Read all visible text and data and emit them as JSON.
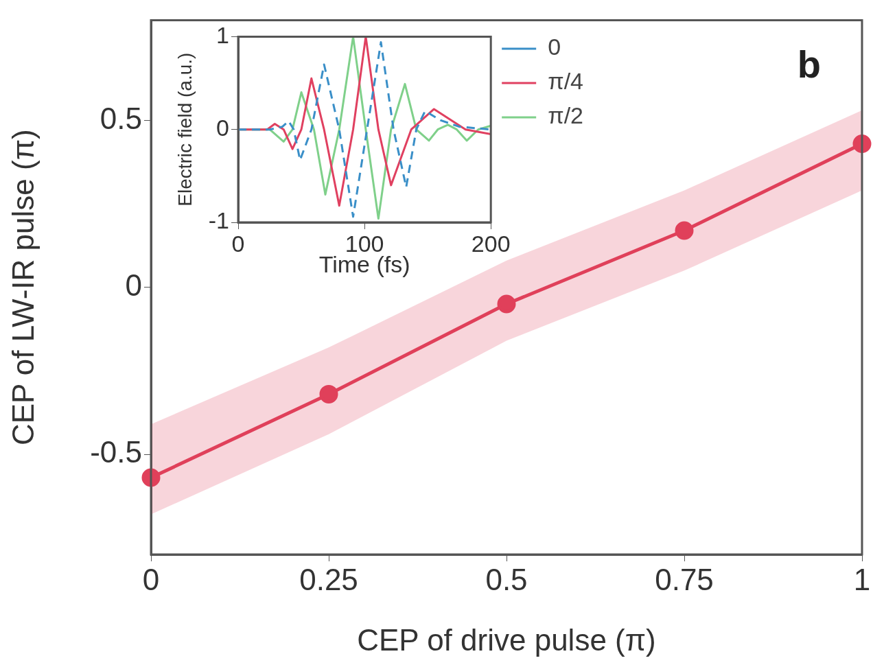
{
  "chart_data": [
    {
      "type": "line",
      "xlabel": "CEP of drive pulse (π)",
      "ylabel": "CEP of LW-IR pulse (π)",
      "x": [
        0,
        0.25,
        0.5,
        0.75,
        1
      ],
      "series": [
        {
          "color": "#e0405a",
          "values": [
            -0.57,
            -0.32,
            -0.05,
            0.17,
            0.43
          ],
          "lower": [
            -0.68,
            -0.44,
            -0.16,
            0.05,
            0.29
          ],
          "upper": [
            -0.41,
            -0.18,
            0.08,
            0.29,
            0.53
          ]
        }
      ],
      "xlim": [
        0,
        1
      ],
      "ylim": [
        -0.8,
        0.8
      ],
      "xticks": [
        0,
        0.25,
        0.5,
        0.75,
        1
      ],
      "yticks": [
        -0.5,
        0,
        0.5
      ],
      "marker": "circle",
      "grid": false,
      "annotations": [
        "b"
      ]
    },
    {
      "type": "line",
      "xlabel": "Time (fs)",
      "ylabel": "Electric field (a.u.)",
      "legend": "right",
      "marker": "none",
      "grid": false,
      "xlim": [
        0,
        200
      ],
      "ylim": [
        -1,
        1
      ],
      "xticks": [
        0,
        100,
        200
      ],
      "yticks": [
        -1,
        0,
        1
      ],
      "series": [
        {
          "name": "0",
          "color": "#3a8fc8",
          "line_style": "dashed",
          "x": [
            0,
            25,
            35,
            40,
            44,
            49,
            58,
            68,
            80,
            91,
            102,
            113,
            123,
            133,
            141,
            148,
            160,
            175,
            200
          ],
          "values": [
            0,
            0,
            0.03,
            0.09,
            0,
            -0.33,
            0,
            0.7,
            0,
            -0.94,
            0,
            0.94,
            0,
            -0.62,
            0,
            0.2,
            0.1,
            0.03,
            0
          ]
        },
        {
          "name": "π/4",
          "color": "#e04060",
          "line_style": "solid",
          "x": [
            0,
            23,
            29,
            36,
            43,
            50,
            58,
            68,
            80,
            91,
            101,
            111,
            121,
            137,
            155,
            180,
            200
          ],
          "values": [
            0,
            0,
            0.06,
            0,
            -0.21,
            0,
            0.55,
            0,
            -0.82,
            0,
            1.0,
            0,
            -0.6,
            0,
            0.22,
            0,
            -0.05
          ]
        },
        {
          "name": "π/2",
          "color": "#7fd08a",
          "line_style": "solid",
          "x": [
            0,
            25,
            36,
            43,
            50,
            60,
            69,
            80,
            91,
            101,
            111,
            121,
            132,
            141,
            151,
            158,
            166,
            173,
            181,
            190,
            200
          ],
          "values": [
            0,
            0,
            -0.13,
            0,
            0.4,
            0,
            -0.7,
            0,
            1.0,
            0,
            -0.96,
            0,
            0.49,
            0,
            -0.12,
            0,
            0.05,
            0,
            -0.12,
            0,
            0.04
          ]
        }
      ]
    }
  ]
}
